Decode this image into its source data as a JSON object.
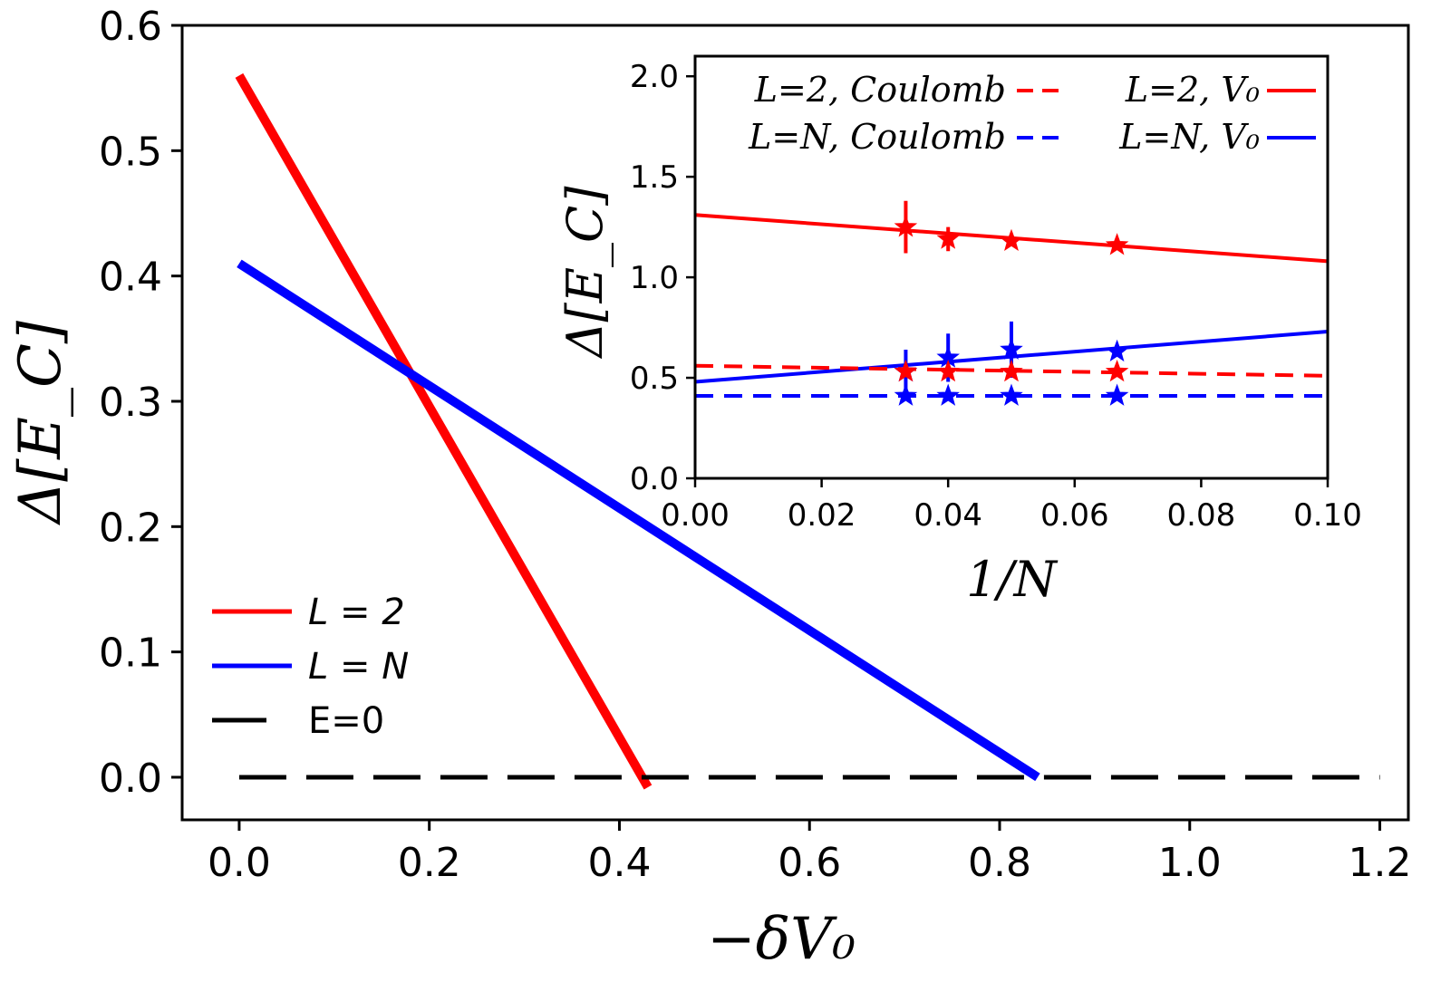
{
  "chart_data": [
    {
      "type": "line",
      "xlabel": "−δV₀",
      "ylabel": "Δ[E_C]",
      "xlim": [
        -0.06,
        1.23
      ],
      "ylim": [
        -0.034,
        0.6
      ],
      "xticks": [
        0.0,
        0.2,
        0.4,
        0.6,
        0.8,
        1.0,
        1.2
      ],
      "xtick_labels": [
        "0.0",
        "0.2",
        "0.4",
        "0.6",
        "0.8",
        "1.0",
        "1.2"
      ],
      "yticks": [
        0.0,
        0.1,
        0.2,
        0.3,
        0.4,
        0.5,
        0.6
      ],
      "ytick_labels": [
        "0.0",
        "0.1",
        "0.2",
        "0.3",
        "0.4",
        "0.5",
        "0.6"
      ],
      "legend_position": "bottom-left",
      "series": [
        {
          "name": "L = 2",
          "color": "#ff0000",
          "style": "solid",
          "x": [
            0.0,
            0.43
          ],
          "y": [
            0.56,
            -0.008
          ]
        },
        {
          "name": "L = N",
          "color": "#0000ff",
          "style": "solid",
          "x": [
            0.0,
            0.84
          ],
          "y": [
            0.41,
            0.0
          ]
        },
        {
          "name": "E=0",
          "color": "#000000",
          "style": "dashed",
          "x": [
            0.0,
            1.2
          ],
          "y": [
            0.0,
            0.0
          ]
        }
      ]
    },
    {
      "type": "scatter",
      "inset": true,
      "xlabel": "1/N",
      "ylabel": "Δ[E_C]",
      "xlim": [
        0.0,
        0.1
      ],
      "ylim": [
        0.0,
        2.1
      ],
      "xticks": [
        0.0,
        0.02,
        0.04,
        0.06,
        0.08,
        0.1
      ],
      "xtick_labels": [
        "0.00",
        "0.02",
        "0.04",
        "0.06",
        "0.08",
        "0.10"
      ],
      "yticks": [
        0.0,
        0.5,
        1.0,
        1.5,
        2.0
      ],
      "ytick_labels": [
        "0.0",
        "0.5",
        "1.0",
        "1.5",
        "2.0"
      ],
      "legend_position": "top",
      "legend": [
        {
          "text": "L=2, Coulomb",
          "color": "#ff0000",
          "style": "dashed"
        },
        {
          "text": "L=2, V₀",
          "color": "#ff0000",
          "style": "solid"
        },
        {
          "text": "L=N, Coulomb",
          "color": "#0000ff",
          "style": "dashed"
        },
        {
          "text": "L=N, V₀",
          "color": "#0000ff",
          "style": "solid"
        }
      ],
      "fit_lines": [
        {
          "series": "L=2, V₀",
          "color": "#ff0000",
          "style": "solid",
          "x": [
            0.0,
            0.1
          ],
          "y": [
            1.31,
            1.08
          ]
        },
        {
          "series": "L=N, V₀",
          "color": "#0000ff",
          "style": "solid",
          "x": [
            0.0,
            0.1
          ],
          "y": [
            0.48,
            0.73
          ]
        },
        {
          "series": "L=2, Coulomb",
          "color": "#ff0000",
          "style": "dashed",
          "x": [
            0.0,
            0.1
          ],
          "y": [
            0.56,
            0.51
          ]
        },
        {
          "series": "L=N, Coulomb",
          "color": "#0000ff",
          "style": "dashed",
          "x": [
            0.0,
            0.1
          ],
          "y": [
            0.41,
            0.41
          ]
        }
      ],
      "points": [
        {
          "series": "L=2, V₀",
          "color": "#ff0000",
          "x": [
            0.0333,
            0.04,
            0.05,
            0.0667
          ],
          "y": [
            1.25,
            1.19,
            1.18,
            1.16
          ],
          "err": [
            0.13,
            0.06,
            0.02,
            0.02
          ]
        },
        {
          "series": "L=N, V₀",
          "color": "#0000ff",
          "x": [
            0.0333,
            0.04,
            0.05,
            0.0667
          ],
          "y": [
            0.53,
            0.6,
            0.64,
            0.63
          ],
          "err": [
            0.11,
            0.12,
            0.14,
            0.02
          ]
        },
        {
          "series": "L=2, Coulomb",
          "color": "#ff0000",
          "x": [
            0.0333,
            0.04,
            0.05,
            0.0667
          ],
          "y": [
            0.53,
            0.53,
            0.53,
            0.53
          ],
          "err": [
            0.0,
            0.0,
            0.0,
            0.0
          ]
        },
        {
          "series": "L=N, Coulomb",
          "color": "#0000ff",
          "x": [
            0.0333,
            0.04,
            0.05,
            0.0667
          ],
          "y": [
            0.41,
            0.41,
            0.41,
            0.41
          ],
          "err": [
            0.0,
            0.0,
            0.0,
            0.0
          ]
        }
      ]
    }
  ]
}
